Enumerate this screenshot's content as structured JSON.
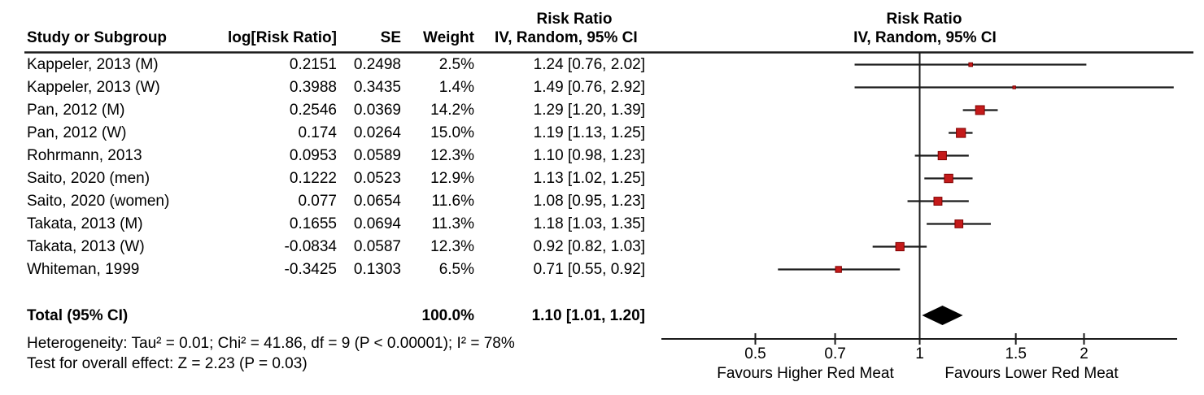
{
  "figure": {
    "table_header": {
      "study": "Study or Subgroup",
      "log_rr": "log[Risk Ratio]",
      "se": "SE",
      "weight": "Weight",
      "effect_line1": "Risk Ratio",
      "effect_line2": "IV, Random, 95% CI"
    },
    "plot_header": {
      "line1": "Risk Ratio",
      "line2": "IV, Random, 95% CI"
    },
    "rows": [
      {
        "study": "Kappeler, 2013 (M)",
        "log_rr": "0.2151",
        "se": "0.2498",
        "weight": "2.5%",
        "weight_pct": 2.5,
        "ci_text": "1.24 [0.76, 2.02]",
        "rr": 1.24,
        "lo": 0.76,
        "hi": 2.02
      },
      {
        "study": "Kappeler, 2013 (W)",
        "log_rr": "0.3988",
        "se": "0.3435",
        "weight": "1.4%",
        "weight_pct": 1.4,
        "ci_text": "1.49 [0.76, 2.92]",
        "rr": 1.49,
        "lo": 0.76,
        "hi": 2.92
      },
      {
        "study": "Pan, 2012 (M)",
        "log_rr": "0.2546",
        "se": "0.0369",
        "weight": "14.2%",
        "weight_pct": 14.2,
        "ci_text": "1.29 [1.20, 1.39]",
        "rr": 1.29,
        "lo": 1.2,
        "hi": 1.39
      },
      {
        "study": "Pan, 2012 (W)",
        "log_rr": "0.174",
        "se": "0.0264",
        "weight": "15.0%",
        "weight_pct": 15.0,
        "ci_text": "1.19 [1.13, 1.25]",
        "rr": 1.19,
        "lo": 1.13,
        "hi": 1.25
      },
      {
        "study": "Rohrmann, 2013",
        "log_rr": "0.0953",
        "se": "0.0589",
        "weight": "12.3%",
        "weight_pct": 12.3,
        "ci_text": "1.10 [0.98, 1.23]",
        "rr": 1.1,
        "lo": 0.98,
        "hi": 1.23
      },
      {
        "study": "Saito, 2020 (men)",
        "log_rr": "0.1222",
        "se": "0.0523",
        "weight": "12.9%",
        "weight_pct": 12.9,
        "ci_text": "1.13 [1.02, 1.25]",
        "rr": 1.13,
        "lo": 1.02,
        "hi": 1.25
      },
      {
        "study": "Saito, 2020 (women)",
        "log_rr": "0.077",
        "se": "0.0654",
        "weight": "11.6%",
        "weight_pct": 11.6,
        "ci_text": "1.08 [0.95, 1.23]",
        "rr": 1.08,
        "lo": 0.95,
        "hi": 1.23
      },
      {
        "study": "Takata, 2013 (M)",
        "log_rr": "0.1655",
        "se": "0.0694",
        "weight": "11.3%",
        "weight_pct": 11.3,
        "ci_text": "1.18 [1.03, 1.35]",
        "rr": 1.18,
        "lo": 1.03,
        "hi": 1.35
      },
      {
        "study": "Takata, 2013 (W)",
        "log_rr": "-0.0834",
        "se": "0.0587",
        "weight": "12.3%",
        "weight_pct": 12.3,
        "ci_text": "0.92 [0.82, 1.03]",
        "rr": 0.92,
        "lo": 0.82,
        "hi": 1.03
      },
      {
        "study": "Whiteman, 1999",
        "log_rr": "-0.3425",
        "se": "0.1303",
        "weight": "6.5%",
        "weight_pct": 6.5,
        "ci_text": "0.71 [0.55, 0.92]",
        "rr": 0.71,
        "lo": 0.55,
        "hi": 0.92
      }
    ],
    "total": {
      "label": "Total (95% CI)",
      "weight": "100.0%",
      "ci_text": "1.10 [1.01, 1.20]",
      "rr": 1.1,
      "lo": 1.01,
      "hi": 1.2
    },
    "heterogeneity": "Heterogeneity: Tau² = 0.01; Chi² = 41.86, df = 9 (P < 0.00001); I² = 78%",
    "overall_effect": "Test for overall effect: Z = 2.23 (P = 0.03)",
    "axis": {
      "tick_values": [
        0.5,
        0.7,
        1,
        1.5,
        2
      ],
      "tick_labels": [
        "0.5",
        "0.7",
        "1",
        "1.5",
        "2"
      ],
      "favours_left": "Favours Higher Red Meat",
      "favours_right": "Favours Lower Red Meat"
    },
    "colors": {
      "marker_fill": "#c41a1a",
      "marker_border": "#7f0000",
      "line": "#1a1a1a",
      "diamond": "#000000"
    }
  },
  "chart_data": {
    "type": "scatter",
    "subtype": "forest-plot",
    "title": "Risk Ratio IV, Random, 95% CI",
    "x_scale": "log",
    "xlim": [
      0.34,
      2.95
    ],
    "x_ticks": [
      0.5,
      0.7,
      1,
      1.5,
      2
    ],
    "xlabel_left": "Favours Higher Red Meat",
    "xlabel_right": "Favours Lower Red Meat",
    "series": [
      {
        "name": "Kappeler, 2013 (M)",
        "rr": 1.24,
        "ci": [
          0.76,
          2.02
        ],
        "weight_pct": 2.5,
        "log_rr": 0.2151,
        "se": 0.2498
      },
      {
        "name": "Kappeler, 2013 (W)",
        "rr": 1.49,
        "ci": [
          0.76,
          2.92
        ],
        "weight_pct": 1.4,
        "log_rr": 0.3988,
        "se": 0.3435
      },
      {
        "name": "Pan, 2012 (M)",
        "rr": 1.29,
        "ci": [
          1.2,
          1.39
        ],
        "weight_pct": 14.2,
        "log_rr": 0.2546,
        "se": 0.0369
      },
      {
        "name": "Pan, 2012 (W)",
        "rr": 1.19,
        "ci": [
          1.13,
          1.25
        ],
        "weight_pct": 15.0,
        "log_rr": 0.174,
        "se": 0.0264
      },
      {
        "name": "Rohrmann, 2013",
        "rr": 1.1,
        "ci": [
          0.98,
          1.23
        ],
        "weight_pct": 12.3,
        "log_rr": 0.0953,
        "se": 0.0589
      },
      {
        "name": "Saito, 2020 (men)",
        "rr": 1.13,
        "ci": [
          1.02,
          1.25
        ],
        "weight_pct": 12.9,
        "log_rr": 0.1222,
        "se": 0.0523
      },
      {
        "name": "Saito, 2020 (women)",
        "rr": 1.08,
        "ci": [
          0.95,
          1.23
        ],
        "weight_pct": 11.6,
        "log_rr": 0.077,
        "se": 0.0654
      },
      {
        "name": "Takata, 2013 (M)",
        "rr": 1.18,
        "ci": [
          1.03,
          1.35
        ],
        "weight_pct": 11.3,
        "log_rr": 0.1655,
        "se": 0.0694
      },
      {
        "name": "Takata, 2013 (W)",
        "rr": 0.92,
        "ci": [
          0.82,
          1.03
        ],
        "weight_pct": 12.3,
        "log_rr": -0.0834,
        "se": 0.0587
      },
      {
        "name": "Whiteman, 1999",
        "rr": 0.71,
        "ci": [
          0.55,
          0.92
        ],
        "weight_pct": 6.5,
        "log_rr": -0.3425,
        "se": 0.1303
      }
    ],
    "total": {
      "name": "Total (95% CI)",
      "rr": 1.1,
      "ci": [
        1.01,
        1.2
      ],
      "weight_pct": 100.0
    },
    "heterogeneity": {
      "tau2": 0.01,
      "chi2": 41.86,
      "df": 9,
      "p": "< 0.00001",
      "i2_pct": 78
    },
    "overall_effect": {
      "z": 2.23,
      "p": 0.03
    }
  }
}
